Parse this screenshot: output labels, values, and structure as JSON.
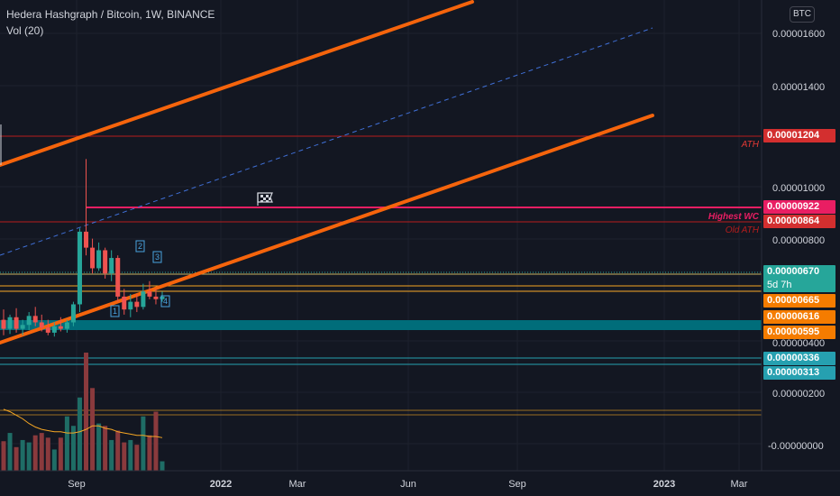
{
  "header": {
    "symbol_line": "Hedera Hashgraph / Bitcoin, 1W, BINANCE",
    "volume_label": "Vol (20)",
    "currency_button": "BTC"
  },
  "price_axis": {
    "ticks": [
      "0.00001600",
      "0.00001400",
      "0.00001000",
      "0.00000800",
      "0.00000400",
      "0.00000200",
      "-0.00000000"
    ]
  },
  "time_axis": {
    "ticks": [
      "Sep",
      "2022",
      "Mar",
      "Jun",
      "Sep",
      "2023",
      "Mar"
    ]
  },
  "price_labels": [
    {
      "text": "0.00001204",
      "color": "#d32f2f"
    },
    {
      "text": "0.00000922",
      "color": "#e91e63"
    },
    {
      "text": "0.00000864",
      "color": "#d32f2f"
    },
    {
      "text": "0.00000670",
      "color": "#26a69a",
      "subtext": "5d 7h"
    },
    {
      "text": "0.00000665",
      "color": "#f57c00"
    },
    {
      "text": "0.00000616",
      "color": "#f57c00"
    },
    {
      "text": "0.00000595",
      "color": "#f57c00"
    },
    {
      "text": "0.00000336",
      "color": "#26a0b0"
    },
    {
      "text": "0.00000313",
      "color": "#26a0b0"
    }
  ],
  "annotations": {
    "ath": "ATH",
    "highest_wc": "Highest WC",
    "old_ath": "Old ATH",
    "waves": [
      "1",
      "2",
      "3",
      "4"
    ]
  },
  "chart_data": {
    "type": "candlestick",
    "title": "Hedera Hashgraph / Bitcoin, 1W, BINANCE",
    "ylabel": "",
    "ylim": [
      -6e-07,
      1.75e-05
    ],
    "ohlc": [
      {
        "o": 5.8e-06,
        "h": 6.2e-06,
        "l": 5.2e-06,
        "c": 5.45e-06
      },
      {
        "o": 5.45e-06,
        "h": 6e-06,
        "l": 5.25e-06,
        "c": 5.9e-06
      },
      {
        "o": 5.9e-06,
        "h": 6.25e-06,
        "l": 5.3e-06,
        "c": 5.45e-06
      },
      {
        "o": 5.45e-06,
        "h": 5.8e-06,
        "l": 5.2e-06,
        "c": 5.6e-06
      },
      {
        "o": 5.6e-06,
        "h": 6.1e-06,
        "l": 5.4e-06,
        "c": 5.95e-06
      },
      {
        "o": 5.95e-06,
        "h": 6.3e-06,
        "l": 5.55e-06,
        "c": 5.7e-06
      },
      {
        "o": 5.7e-06,
        "h": 6e-06,
        "l": 5.35e-06,
        "c": 5.5e-06
      },
      {
        "o": 5.5e-06,
        "h": 5.8e-06,
        "l": 5.2e-06,
        "c": 5.3e-06
      },
      {
        "o": 5.3e-06,
        "h": 5.7e-06,
        "l": 5.15e-06,
        "c": 5.55e-06
      },
      {
        "o": 5.55e-06,
        "h": 5.9e-06,
        "l": 5.35e-06,
        "c": 5.45e-06
      },
      {
        "o": 5.45e-06,
        "h": 5.8e-06,
        "l": 5.3e-06,
        "c": 5.7e-06
      },
      {
        "o": 5.7e-06,
        "h": 6.5e-06,
        "l": 5.55e-06,
        "c": 6.4e-06
      },
      {
        "o": 6.4e-06,
        "h": 9.35e-06,
        "l": 6.1e-06,
        "c": 9.22e-06
      },
      {
        "o": 9.22e-06,
        "h": 1.204e-05,
        "l": 8.3e-06,
        "c": 8.6e-06
      },
      {
        "o": 8.6e-06,
        "h": 8.95e-06,
        "l": 7.6e-06,
        "c": 7.8e-06
      },
      {
        "o": 7.8e-06,
        "h": 8.8e-06,
        "l": 7.7e-06,
        "c": 8.5e-06
      },
      {
        "o": 8.5e-06,
        "h": 8.6e-06,
        "l": 7.4e-06,
        "c": 7.6e-06
      },
      {
        "o": 7.6e-06,
        "h": 8.5e-06,
        "l": 7.3e-06,
        "c": 8.2e-06
      },
      {
        "o": 8.2e-06,
        "h": 8.3e-06,
        "l": 6.5e-06,
        "c": 6.7e-06
      },
      {
        "o": 6.7e-06,
        "h": 7e-06,
        "l": 6e-06,
        "c": 6.2e-06
      },
      {
        "o": 6.2e-06,
        "h": 6.8e-06,
        "l": 5.9e-06,
        "c": 6.5e-06
      },
      {
        "o": 6.5e-06,
        "h": 6.8e-06,
        "l": 6.1e-06,
        "c": 6.3e-06
      },
      {
        "o": 6.3e-06,
        "h": 7.2e-06,
        "l": 6.2e-06,
        "c": 6.9e-06
      },
      {
        "o": 6.9e-06,
        "h": 7.3e-06,
        "l": 6.6e-06,
        "c": 6.7e-06
      },
      {
        "o": 6.7e-06,
        "h": 7e-06,
        "l": 6.4e-06,
        "c": 6.6e-06
      },
      {
        "o": 6.6e-06,
        "h": 6.9e-06,
        "l": 6.5e-06,
        "c": 6.7e-06
      }
    ],
    "volume": [
      0.25,
      0.32,
      0.2,
      0.26,
      0.24,
      0.3,
      0.32,
      0.28,
      0.18,
      0.28,
      0.46,
      0.38,
      0.62,
      1.0,
      0.7,
      0.4,
      0.38,
      0.26,
      0.34,
      0.24,
      0.26,
      0.22,
      0.46,
      0.3,
      0.5,
      0.08
    ],
    "volume_ma": [
      0.52,
      0.5,
      0.47,
      0.44,
      0.4,
      0.37,
      0.35,
      0.34,
      0.33,
      0.33,
      0.32,
      0.32,
      0.33,
      0.35,
      0.38,
      0.38,
      0.36,
      0.35,
      0.33,
      0.32,
      0.31,
      0.3,
      0.3,
      0.29,
      0.29,
      0.28
    ]
  },
  "colors": {
    "background": "#131722",
    "up": "#26a69a",
    "down": "#ef5350",
    "channel": "#f5640c",
    "ath_line": "#b71c1c",
    "highest_wc_line": "#e91e63",
    "support_band": "#006d7a"
  }
}
